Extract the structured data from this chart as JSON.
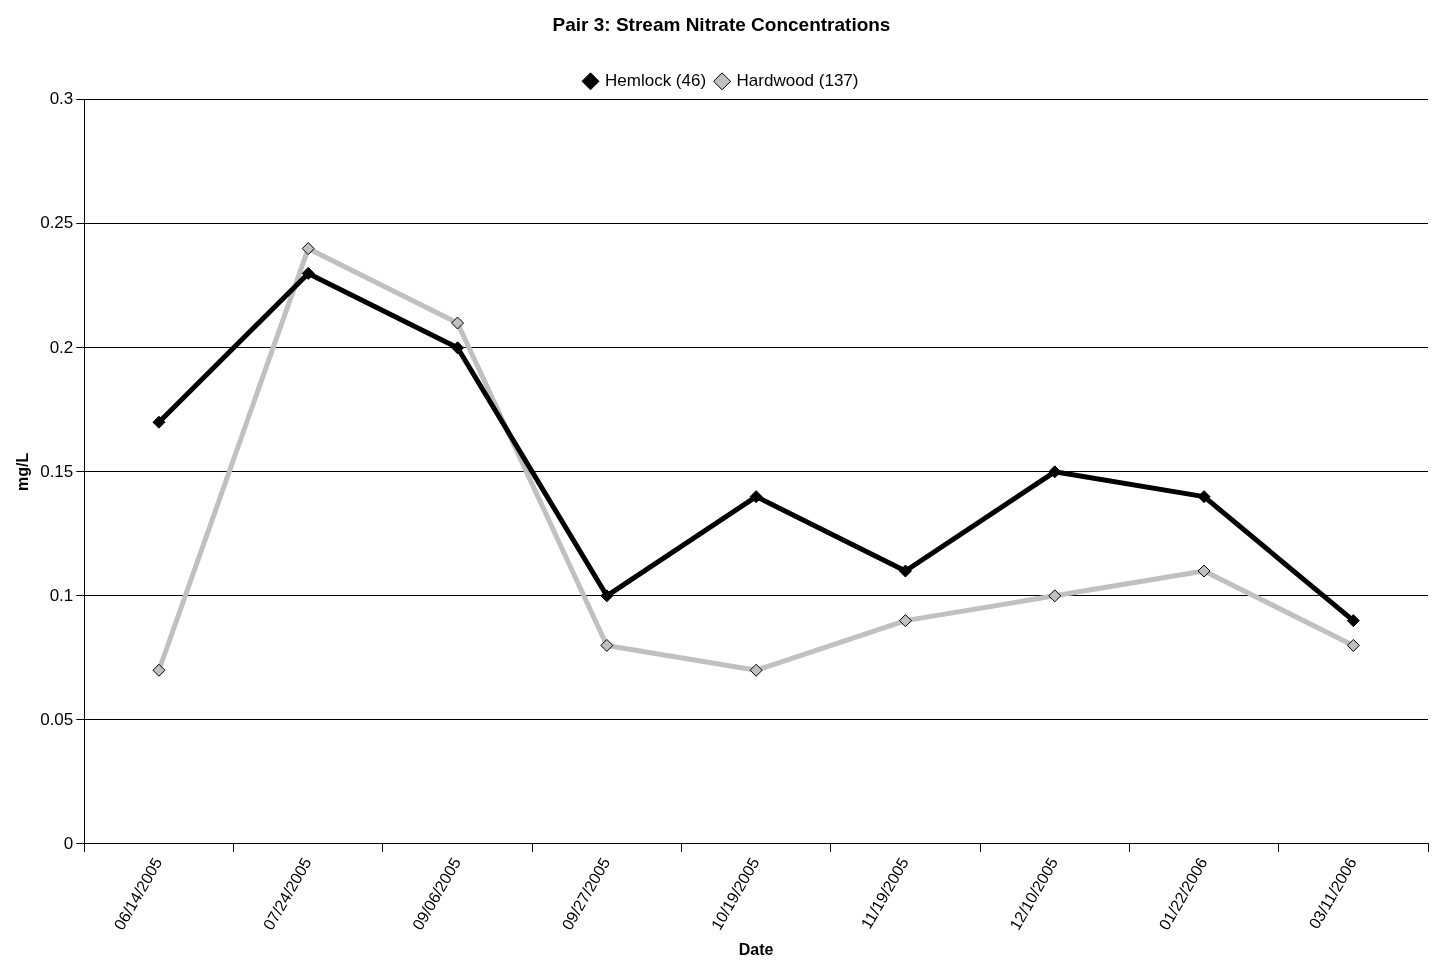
{
  "chart_data": {
    "type": "line",
    "title": "Pair 3: Stream Nitrate Concentrations",
    "xlabel": "Date",
    "ylabel": "mg/L",
    "categories": [
      "06/14/2005",
      "07/24/2005",
      "09/06/2005",
      "09/27/2005",
      "10/19/2005",
      "11/19/2005",
      "12/10/2005",
      "01/22/2006",
      "03/11/2006"
    ],
    "series": [
      {
        "name": "Hemlock (46)",
        "color": "#000000",
        "values": [
          0.17,
          0.23,
          0.2,
          0.1,
          0.14,
          0.11,
          0.15,
          0.14,
          0.09
        ]
      },
      {
        "name": "Hardwood (137)",
        "color": "#c0c0c0",
        "values": [
          0.07,
          0.24,
          0.21,
          0.08,
          0.07,
          0.09,
          0.1,
          0.11,
          0.08
        ]
      }
    ],
    "ylim": [
      0,
      0.3
    ],
    "yticks": [
      0,
      0.05,
      0.1,
      0.15,
      0.2,
      0.25,
      0.3
    ],
    "grid": "y",
    "legend": "top",
    "marker": "diamond",
    "line_style": "solid"
  }
}
